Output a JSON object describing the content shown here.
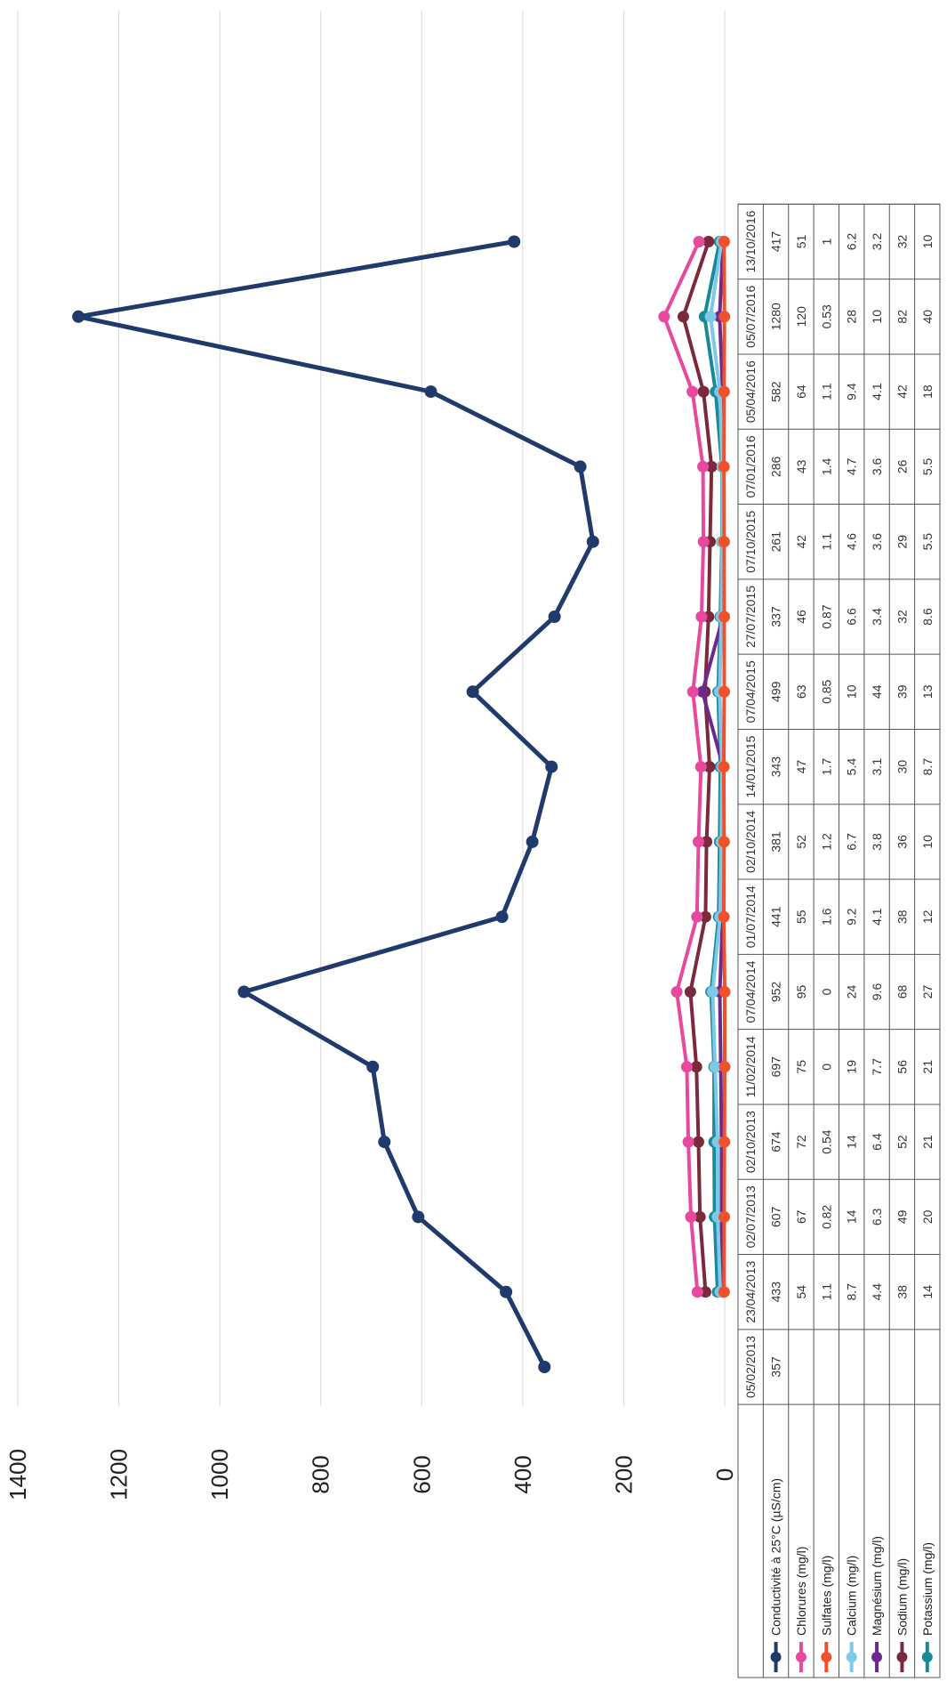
{
  "chart_data": {
    "type": "line",
    "orientation": "rotated-90-clockwise",
    "y_ticks": [
      "0",
      "200",
      "400",
      "600",
      "800",
      "1000",
      "1200",
      "1400"
    ],
    "ylim": [
      0,
      1400
    ],
    "grid": true,
    "legend_placement": "data-table-rows",
    "categories": [
      "05/02/2013",
      "23/04/2013",
      "02/07/2013",
      "02/10/2013",
      "11/02/2014",
      "07/04/2014",
      "01/07/2014",
      "02/10/2014",
      "14/01/2015",
      "07/04/2015",
      "27/07/2015",
      "07/10/2015",
      "07/01/2016",
      "05/04/2016",
      "05/07/2016",
      "13/10/2016"
    ],
    "series": [
      {
        "name": "Conductivité à 25°C (µS/cm)",
        "color": "#1f3a6b",
        "values": [
          357,
          433,
          607,
          674,
          697,
          952,
          441,
          381,
          343,
          499,
          337,
          261,
          286,
          582,
          1280,
          417
        ],
        "labels": [
          "357",
          "433",
          "607",
          "674",
          "697",
          "952",
          "441",
          "381",
          "343",
          "499",
          "337",
          "261",
          "286",
          "582",
          "1280",
          "417"
        ]
      },
      {
        "name": "Chlorures (mg/l)",
        "color": "#e8489e",
        "values": [
          null,
          54,
          67,
          72,
          75,
          95,
          55,
          52,
          47,
          63,
          46,
          42,
          43,
          64,
          120,
          51
        ],
        "labels": [
          "",
          "54",
          "67",
          "72",
          "75",
          "95",
          "55",
          "52",
          "47",
          "63",
          "46",
          "42",
          "43",
          "64",
          "120",
          "51"
        ]
      },
      {
        "name": "Sulfates (mg/l)",
        "color": "#f0502a",
        "values": [
          null,
          1.1,
          0.82,
          0.54,
          0,
          0,
          1.6,
          1.2,
          1.7,
          0.85,
          0.87,
          1.1,
          1.4,
          1.1,
          0.53,
          1
        ],
        "labels": [
          "",
          "1.1",
          "0.82",
          "0.54",
          "0",
          "0",
          "1.6",
          "1.2",
          "1.7",
          "0.85",
          "0.87",
          "1.1",
          "1.4",
          "1.1",
          "0.53",
          "1"
        ]
      },
      {
        "name": "Calcium (mg/l)",
        "color": "#7fc8ea",
        "values": [
          null,
          8.7,
          14,
          14,
          19,
          24,
          9.2,
          6.7,
          5.4,
          10,
          6.6,
          4.6,
          4.7,
          9.4,
          28,
          6.2
        ],
        "labels": [
          "",
          "8.7",
          "14",
          "14",
          "19",
          "24",
          "9.2",
          "6.7",
          "5.4",
          "10",
          "6.6",
          "4.6",
          "4.7",
          "9.4",
          "28",
          "6.2"
        ]
      },
      {
        "name": "Magnésium (mg/l)",
        "color": "#6b2a8c",
        "values": [
          null,
          4.4,
          6.3,
          6.4,
          7.7,
          9.6,
          4.1,
          3.8,
          3.1,
          44,
          3.4,
          3.6,
          3.6,
          4.1,
          10,
          3.2
        ],
        "labels": [
          "",
          "4.4",
          "6.3",
          "6.4",
          "7.7",
          "9.6",
          "4.1",
          "3.8",
          "3.1",
          "44",
          "3.4",
          "3.6",
          "3.6",
          "4.1",
          "10",
          "3.2"
        ]
      },
      {
        "name": "Sodium (mg/l)",
        "color": "#7a2a3c",
        "values": [
          null,
          38,
          49,
          52,
          56,
          68,
          38,
          36,
          30,
          39,
          32,
          29,
          26,
          42,
          82,
          32
        ],
        "labels": [
          "",
          "38",
          "49",
          "52",
          "56",
          "68",
          "38",
          "36",
          "30",
          "39",
          "32",
          "29",
          "26",
          "42",
          "82",
          "32"
        ]
      },
      {
        "name": "Potassium (mg/l)",
        "color": "#1a8a96",
        "values": [
          null,
          14,
          20,
          21,
          21,
          27,
          12,
          10,
          8.7,
          13,
          8.6,
          5.5,
          5.5,
          18,
          40,
          10
        ],
        "labels": [
          "",
          "14",
          "20",
          "21",
          "21",
          "27",
          "12",
          "10",
          "8.7",
          "13",
          "8.6",
          "5.5",
          "5.5",
          "18",
          "40",
          "10"
        ]
      }
    ]
  }
}
